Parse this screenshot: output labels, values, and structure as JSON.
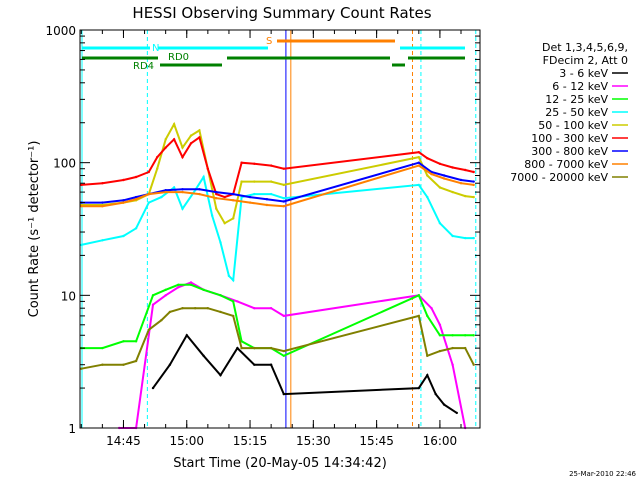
{
  "chart_data": {
    "type": "line",
    "title": "HESSI Observing Summary Count Rates",
    "xlabel": "Start Time (20-May-05 14:34:42)",
    "ylabel": "Count Rate (s⁻¹ detector⁻¹)",
    "y_scale": "log",
    "ylim": [
      1,
      1000
    ],
    "xlim": [
      "14:34:42",
      "16:09:30"
    ],
    "x_ticks": [
      "14:45",
      "15:00",
      "15:15",
      "15:30",
      "15:45",
      "16:00"
    ],
    "y_ticks": [
      "1",
      "10",
      "100",
      "1000"
    ],
    "legend_header": [
      "Det 1,3,4,5,6,9,",
      "FDecim 2, Att 0"
    ],
    "legend_position": "right",
    "footer_timestamp": "25-Mar-2010 22:46",
    "flag_labels": [
      "N",
      "RD0",
      "RD4",
      "S"
    ],
    "series": [
      {
        "name": "3 - 6 keV",
        "color": "#000000",
        "x": [
          "14:52",
          "14:56",
          "15:00",
          "15:04",
          "15:08",
          "15:12",
          "15:16",
          "15:20",
          "15:23",
          "15:55",
          "15:57",
          "15:59",
          "16:01",
          "16:04"
        ],
        "y": [
          2.0,
          3.0,
          5.0,
          3.5,
          2.5,
          4.0,
          3.0,
          3.0,
          1.8,
          2.0,
          2.5,
          1.8,
          1.5,
          1.3
        ]
      },
      {
        "name": "6 - 12 keV",
        "color": "#ff00ff",
        "x": [
          "14:44",
          "14:48",
          "14:52",
          "14:55",
          "14:58",
          "15:01",
          "15:04",
          "15:08",
          "15:12",
          "15:16",
          "15:20",
          "15:23",
          "15:55",
          "15:58",
          "16:00",
          "16:03",
          "16:06"
        ],
        "y": [
          1.0,
          1.0,
          8.5,
          10.0,
          11.5,
          12.5,
          11.0,
          10.0,
          9.0,
          8.0,
          8.0,
          7.0,
          10.0,
          8.0,
          6.0,
          3.0,
          1.0
        ]
      },
      {
        "name": "12 - 25 keV",
        "color": "#00ff00",
        "x": [
          "14:35",
          "14:40",
          "14:45",
          "14:48",
          "14:52",
          "14:55",
          "14:58",
          "15:01",
          "15:04",
          "15:08",
          "15:11",
          "15:13",
          "15:16",
          "15:20",
          "15:23",
          "15:55",
          "15:57",
          "16:00",
          "16:03",
          "16:06",
          "16:08"
        ],
        "y": [
          4.0,
          4.0,
          4.5,
          4.5,
          10.0,
          11.0,
          12.0,
          12.0,
          11.0,
          10.0,
          9.0,
          4.5,
          4.0,
          4.0,
          3.5,
          10.0,
          7.0,
          5.0,
          5.0,
          5.0,
          5.0
        ]
      },
      {
        "name": "25 - 50 keV",
        "color": "#00ffff",
        "x": [
          "14:35",
          "14:40",
          "14:45",
          "14:48",
          "14:51",
          "14:54",
          "14:57",
          "14:59",
          "15:02",
          "15:04",
          "15:06",
          "15:08",
          "15:10",
          "15:11",
          "15:13",
          "15:16",
          "15:20",
          "15:23",
          "15:55",
          "15:57",
          "16:00",
          "16:03",
          "16:06",
          "16:08"
        ],
        "y": [
          24.0,
          26.0,
          28.0,
          32.0,
          50.0,
          55.0,
          65.0,
          45.0,
          62.0,
          78.0,
          40.0,
          25.0,
          14.0,
          13.0,
          55.0,
          58.0,
          58.0,
          54.0,
          68.0,
          55.0,
          35.0,
          28.0,
          27.0,
          27.0
        ]
      },
      {
        "name": "50 - 100 keV",
        "color": "#cccc00",
        "x": [
          "14:35",
          "14:40",
          "14:45",
          "14:48",
          "14:51",
          "14:53",
          "14:55",
          "14:57",
          "14:59",
          "15:01",
          "15:03",
          "15:05",
          "15:07",
          "15:09",
          "15:11",
          "15:13",
          "15:16",
          "15:20",
          "15:23",
          "15:55",
          "15:57",
          "16:00",
          "16:03",
          "16:06",
          "16:08"
        ],
        "y": [
          48.0,
          48.0,
          50.0,
          52.0,
          58.0,
          90.0,
          150.0,
          195.0,
          130.0,
          160.0,
          175.0,
          90.0,
          45.0,
          35.0,
          38.0,
          72.0,
          72.0,
          72.0,
          68.0,
          110.0,
          80.0,
          65.0,
          60.0,
          56.0,
          55.0
        ]
      },
      {
        "name": "100 - 300 keV",
        "color": "#ff0000",
        "x": [
          "14:35",
          "14:40",
          "14:45",
          "14:48",
          "14:51",
          "14:53",
          "14:55",
          "14:57",
          "14:59",
          "15:01",
          "15:03",
          "15:05",
          "15:07",
          "15:09",
          "15:11",
          "15:13",
          "15:16",
          "15:20",
          "15:23",
          "15:55",
          "15:57",
          "16:00",
          "16:03",
          "16:06",
          "16:08"
        ],
        "y": [
          68.0,
          70.0,
          74.0,
          78.0,
          85.0,
          110.0,
          130.0,
          150.0,
          110.0,
          140.0,
          155.0,
          90.0,
          58.0,
          55.0,
          58.0,
          100.0,
          98.0,
          95.0,
          90.0,
          120.0,
          108.0,
          98.0,
          92.0,
          88.0,
          85.0
        ]
      },
      {
        "name": "300 - 800 keV",
        "color": "#0000ff",
        "x": [
          "14:35",
          "14:40",
          "14:45",
          "14:48",
          "14:51",
          "14:55",
          "14:59",
          "15:03",
          "15:07",
          "15:11",
          "15:15",
          "15:19",
          "15:23",
          "15:55",
          "15:58",
          "16:01",
          "16:05",
          "16:08"
        ],
        "y": [
          50.0,
          50.0,
          52.0,
          55.0,
          58.0,
          62.0,
          63.0,
          63.0,
          60.0,
          58.0,
          55.0,
          53.0,
          51.0,
          100.0,
          85.0,
          80.0,
          74.0,
          72.0
        ]
      },
      {
        "name": "800 - 7000 keV",
        "color": "#ff8000",
        "x": [
          "14:35",
          "14:40",
          "14:45",
          "14:48",
          "14:51",
          "14:55",
          "14:59",
          "15:03",
          "15:07",
          "15:11",
          "15:15",
          "15:19",
          "15:23",
          "15:55",
          "15:58",
          "16:01",
          "16:05",
          "16:08"
        ],
        "y": [
          47.0,
          47.0,
          50.0,
          53.0,
          58.0,
          60.0,
          60.0,
          58.0,
          54.0,
          52.0,
          50.0,
          48.0,
          47.0,
          95.0,
          82.0,
          76.0,
          70.0,
          68.0
        ]
      },
      {
        "name": "7000 - 20000 keV",
        "color": "#808000",
        "x": [
          "14:35",
          "14:40",
          "14:45",
          "14:48",
          "14:51",
          "14:54",
          "14:56",
          "14:59",
          "15:02",
          "15:05",
          "15:08",
          "15:11",
          "15:13",
          "15:16",
          "15:20",
          "15:23",
          "15:55",
          "15:57",
          "16:00",
          "16:03",
          "16:06",
          "16:08"
        ],
        "y": [
          2.8,
          3.0,
          3.0,
          3.2,
          5.5,
          6.5,
          7.5,
          8.0,
          8.0,
          8.0,
          7.5,
          7.0,
          4.0,
          4.0,
          4.0,
          3.8,
          7.0,
          3.5,
          3.8,
          4.0,
          4.0,
          3.0
        ]
      }
    ]
  }
}
